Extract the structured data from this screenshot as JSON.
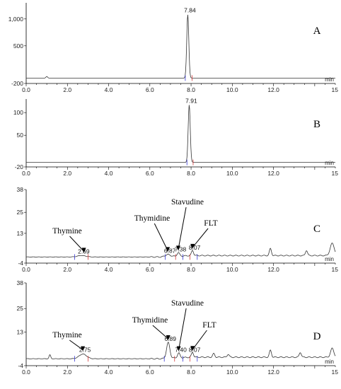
{
  "chart_data": [
    {
      "type": "line",
      "panel_label": "A",
      "x_unit": "min",
      "xlim": [
        0,
        15
      ],
      "ylim": [
        -200,
        1300
      ],
      "x_ticks": [
        "0.0",
        "2.0",
        "4.0",
        "6.0",
        "8.0",
        "10.0",
        "12.0",
        "15"
      ],
      "y_ticks": [
        "1,000",
        "500",
        "-200"
      ],
      "y_tick_values": [
        1000,
        500,
        -200
      ],
      "baseline": -100,
      "peaks": [
        {
          "rt": 7.84,
          "height": 1180,
          "width": 0.05,
          "label": "7.84"
        },
        {
          "rt": 1.0,
          "height": 30,
          "width": 0.04,
          "label": ""
        }
      ],
      "markers": [
        7.72,
        8.05
      ],
      "annotations": []
    },
    {
      "type": "line",
      "panel_label": "B",
      "x_unit": "min",
      "xlim": [
        0,
        15
      ],
      "ylim": [
        -20,
        130
      ],
      "x_ticks": [
        "0.0",
        "2.0",
        "4.0",
        "6.0",
        "8.0",
        "10.0",
        "12.0",
        "15"
      ],
      "y_ticks": [
        "100",
        "50",
        "-20"
      ],
      "y_tick_values": [
        100,
        50,
        -20
      ],
      "baseline": -10,
      "peaks": [
        {
          "rt": 7.91,
          "height": 127,
          "width": 0.05,
          "label": "7.91"
        }
      ],
      "markers": [
        7.8,
        8.1
      ],
      "annotations": []
    },
    {
      "type": "line",
      "panel_label": "C",
      "x_unit": "min",
      "xlim": [
        0,
        15
      ],
      "ylim": [
        -4,
        38
      ],
      "x_ticks": [
        "0.0",
        "2.0",
        "4.0",
        "6.0",
        "8.0",
        "10.0",
        "12.0",
        "15"
      ],
      "y_ticks": [
        "38",
        "25",
        "13",
        "-4"
      ],
      "y_tick_values": [
        38,
        25,
        13,
        -4
      ],
      "baseline": -0.5,
      "peaks": [
        {
          "rt": 2.69,
          "height": 0.8,
          "width": 0.2,
          "label": "2.69"
        },
        {
          "rt": 6.87,
          "height": 1.2,
          "width": 0.12,
          "label": "6.87"
        },
        {
          "rt": 7.38,
          "height": 2.0,
          "width": 0.06,
          "label": "7.38"
        },
        {
          "rt": 8.07,
          "height": 3.0,
          "width": 0.05,
          "label": "8.07"
        },
        {
          "rt": 11.85,
          "height": 4.0,
          "width": 0.05,
          "label": ""
        },
        {
          "rt": 13.6,
          "height": 3.0,
          "width": 0.05,
          "label": ""
        },
        {
          "rt": 14.85,
          "height": 7.0,
          "width": 0.1,
          "label": ""
        }
      ],
      "markers": [
        2.35,
        3.0,
        6.75,
        7.25,
        7.6,
        7.95,
        8.3
      ],
      "annotations": [
        {
          "text": "Thymine",
          "rt": 2.8,
          "offset": 28,
          "lx": 95,
          "ly": 330
        },
        {
          "text": "Thymidine",
          "rt": 6.87,
          "offset": 22,
          "lx": 215,
          "ly": 312
        },
        {
          "text": "Stavudine",
          "rt": 7.38,
          "offset": 34,
          "lx": 265,
          "ly": 289
        },
        {
          "text": "FLT",
          "rt": 8.07,
          "offset": 28,
          "lx": 298,
          "ly": 319
        }
      ]
    },
    {
      "type": "line",
      "panel_label": "D",
      "x_unit": "min",
      "xlim": [
        0,
        15
      ],
      "ylim": [
        -4,
        38
      ],
      "x_ticks": [
        "0.0",
        "2.0",
        "4.0",
        "6.0",
        "8.0",
        "10.0",
        "12.0",
        "15"
      ],
      "y_ticks": [
        "38",
        "25",
        "13",
        "-4"
      ],
      "y_tick_values": [
        38,
        25,
        13,
        -4
      ],
      "baseline": -0.5,
      "peaks": [
        {
          "rt": 1.15,
          "height": 2.0,
          "width": 0.04,
          "label": ""
        },
        {
          "rt": 2.75,
          "height": 2.4,
          "width": 0.18,
          "label": "2.75"
        },
        {
          "rt": 6.89,
          "height": 8.0,
          "width": 0.08,
          "label": "6.89"
        },
        {
          "rt": 7.4,
          "height": 2.4,
          "width": 0.06,
          "label": "7.40"
        },
        {
          "rt": 8.07,
          "height": 2.5,
          "width": 0.05,
          "label": "8.07"
        },
        {
          "rt": 9.1,
          "height": 1.8,
          "width": 0.05,
          "label": ""
        },
        {
          "rt": 9.8,
          "height": 1.5,
          "width": 0.05,
          "label": ""
        },
        {
          "rt": 11.85,
          "height": 3.5,
          "width": 0.05,
          "label": ""
        },
        {
          "rt": 13.3,
          "height": 2.5,
          "width": 0.05,
          "label": ""
        },
        {
          "rt": 14.85,
          "height": 4.5,
          "width": 0.08,
          "label": ""
        }
      ],
      "markers": [
        2.35,
        3.0,
        6.7,
        7.2,
        7.6,
        7.95,
        8.3
      ],
      "annotations": [
        {
          "text": "Thymine",
          "rt": 2.75,
          "offset": 24,
          "lx": 95,
          "ly": 477
        },
        {
          "text": "Thymidine",
          "rt": 6.89,
          "offset": 20,
          "lx": 212,
          "ly": 456
        },
        {
          "text": "Stavudine",
          "rt": 7.4,
          "offset": 48,
          "lx": 265,
          "ly": 432
        },
        {
          "text": "FLT",
          "rt": 8.07,
          "offset": 26,
          "lx": 296,
          "ly": 463
        }
      ]
    }
  ]
}
